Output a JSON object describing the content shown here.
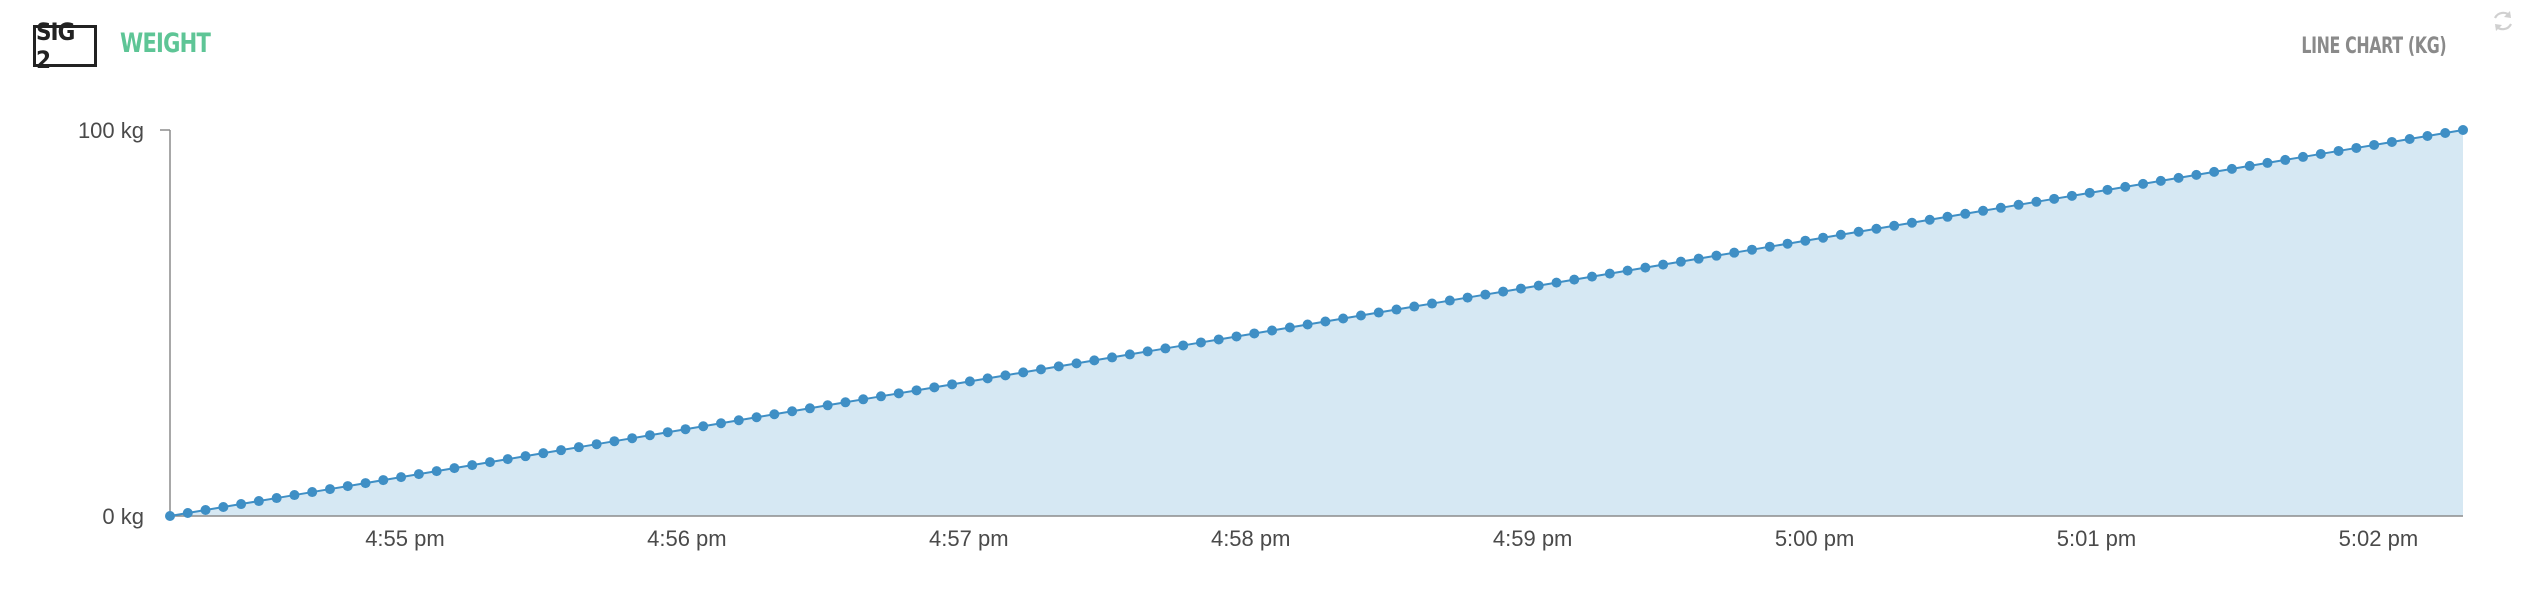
{
  "header": {
    "badge": "SIG 2",
    "title": "WEIGHT",
    "chart_type_label": "LINE CHART (KG)",
    "title_color": "#5ec596",
    "icon": "refresh-icon"
  },
  "colors": {
    "line": "#3f8fc5",
    "fill": "#d6e8f3",
    "axis": "#8c8c8c"
  },
  "chart_data": {
    "type": "area",
    "title": "",
    "xlabel": "",
    "ylabel": "",
    "ylim": [
      0,
      100
    ],
    "y_ticks": [
      "0 kg",
      "100 kg"
    ],
    "x_ticks": [
      "4:55 pm",
      "4:56 pm",
      "4:57 pm",
      "4:58 pm",
      "4:59 pm",
      "5:00 pm",
      "5:01 pm",
      "5:02 pm"
    ],
    "x_start": "4:54:10 pm",
    "x_end": "5:02:18 pm",
    "x": [
      "4:54:10 pm",
      "5:02:18 pm"
    ],
    "series": [
      {
        "values": [
          0,
          100
        ],
        "marker": "circle",
        "point_count": 130
      }
    ],
    "grid": false,
    "legend": "none"
  }
}
